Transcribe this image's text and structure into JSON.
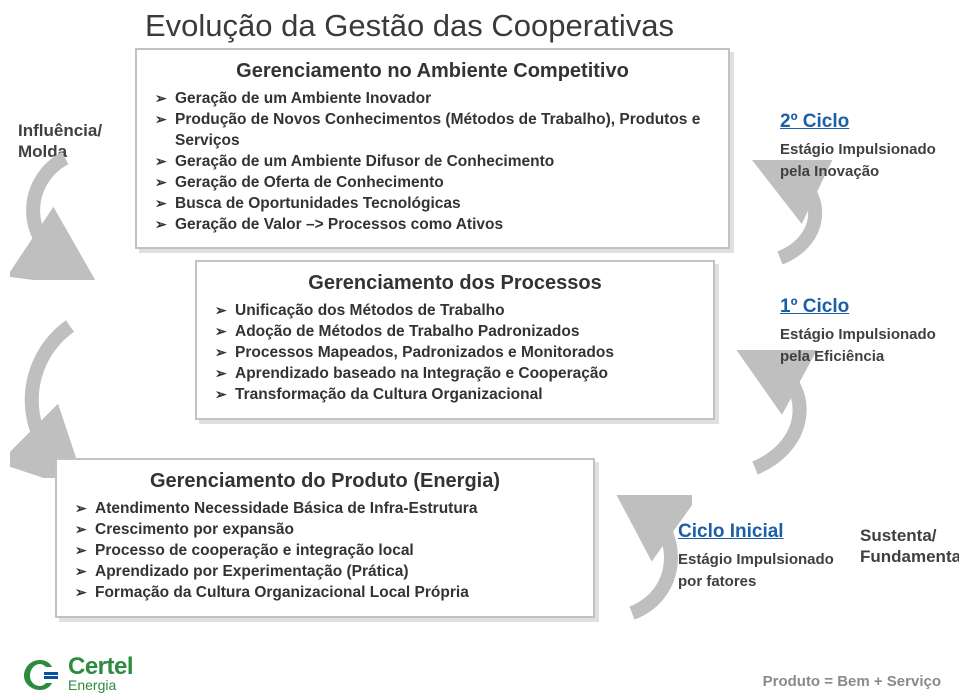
{
  "title": "Evolução da Gestão das Cooperativas",
  "left_label": "Influência/\nMolda",
  "cards": {
    "top": {
      "title": "Gerenciamento no Ambiente Competitivo",
      "bullets": [
        "Geração de um Ambiente Inovador",
        "Produção de Novos Conhecimentos (Métodos de Trabalho), Produtos e Serviços",
        "Geração de um Ambiente Difusor de Conhecimento",
        "Geração de Oferta de Conhecimento",
        "Busca de Oportunidades Tecnológicas",
        "Geração de Valor –> Processos como Ativos"
      ]
    },
    "mid": {
      "title": "Gerenciamento dos Processos",
      "bullets": [
        "Unificação dos Métodos de Trabalho",
        "Adoção de Métodos de Trabalho Padronizados",
        "Processos Mapeados, Padronizados e Monitorados",
        "Aprendizado baseado na Integração e Cooperação",
        "Transformação da Cultura Organizacional"
      ]
    },
    "bottom": {
      "title": "Gerenciamento do Produto (Energia)",
      "bullets": [
        "Atendimento Necessidade Básica de Infra-Estrutura",
        "Crescimento por expansão",
        "Processo de cooperação e integração local",
        "Aprendizado por Experimentação (Prática)",
        "Formação da Cultura Organizacional Local Própria"
      ]
    }
  },
  "cycles": {
    "c2": {
      "title": "2º Ciclo",
      "stage": "Estágio Impulsionado",
      "by": "pela Inovação"
    },
    "c1": {
      "title": "1º Ciclo",
      "stage": "Estágio Impulsionado",
      "by": "pela Eficiência"
    },
    "c0": {
      "title": "Ciclo Inicial",
      "stage": "Estágio Impulsionado",
      "by": "por fatores"
    }
  },
  "sustenta": "Sustenta/\nFundamenta",
  "footer_note": "Produto = Bem + Serviço",
  "logo": {
    "main": "Certel",
    "sub": "Energia"
  },
  "colors": {
    "cycle_blue": "#1b5fa6",
    "text_gray": "#404040",
    "card_border": "#c2c2c2",
    "arrow_gray": "#bfbfbf",
    "logo_green": "#2d8b3e",
    "footer_gray": "#8a8a8a"
  },
  "arrows": {
    "stroke_width": 14
  }
}
